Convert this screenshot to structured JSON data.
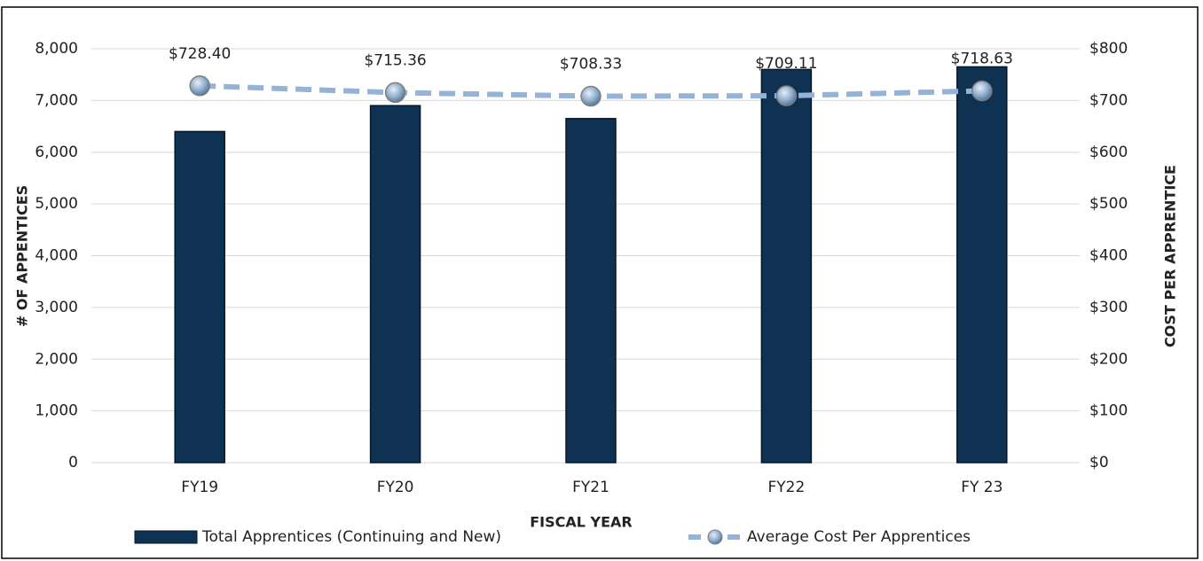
{
  "chart_data": {
    "type": "bar_line",
    "categories": [
      "FY19",
      "FY20",
      "FY21",
      "FY22",
      "FY 23"
    ],
    "series": [
      {
        "name": "Total Apprentices (Continuing and New)",
        "color": "#0f3152",
        "values": [
          6400,
          6900,
          6650,
          7600,
          7650
        ]
      },
      {
        "name": "Average Cost Per Apprentices",
        "color": "#95b3d7",
        "axis": "y2",
        "values": [
          728.4,
          715.36,
          708.33,
          709.11,
          718.63
        ],
        "value_labels": [
          "$728.40",
          "$715.36",
          "$708.33",
          "$709.11",
          "$718.63"
        ]
      }
    ],
    "ylabel": "# OF APPENTICES",
    "y2label": "COST PER APPRENTICE",
    "xlabel": "FISCAL YEAR",
    "ylim": [
      0,
      8000
    ],
    "yticks": [
      0,
      {
        "value": 1000,
        "label": "1,000"
      },
      {
        "value": 2000,
        "label": "2,000"
      },
      {
        "value": 3000,
        "label": "3,000"
      },
      {
        "value": 4000,
        "label": "4,000"
      },
      {
        "value": 5000,
        "label": "5,000"
      },
      {
        "value": 6000,
        "label": "6,000"
      },
      {
        "value": 7000,
        "label": "7,000"
      },
      {
        "value": 8000,
        "label": "8,000"
      }
    ],
    "y2lim": [
      0,
      800
    ],
    "y2ticks": [
      {
        "value": 0,
        "label": "$0"
      },
      {
        "value": 100,
        "label": "$100"
      },
      {
        "value": 200,
        "label": "$200"
      },
      {
        "value": 300,
        "label": "$300"
      },
      {
        "value": 400,
        "label": "$400"
      },
      {
        "value": 500,
        "label": "$500"
      },
      {
        "value": 600,
        "label": "$600"
      },
      {
        "value": 700,
        "label": "$700"
      },
      {
        "value": 800,
        "label": "$800"
      }
    ],
    "grid": true
  }
}
